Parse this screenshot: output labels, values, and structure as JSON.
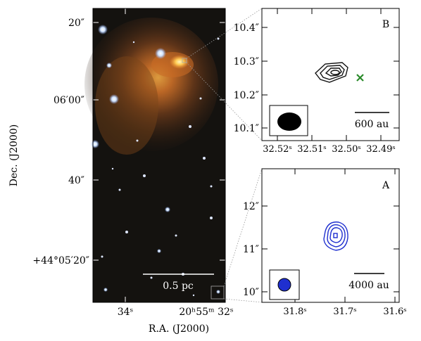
{
  "figure": {
    "main": {
      "ylabel": "Dec. (J2000)",
      "xlabel": "R.A. (J2000)",
      "yticks": [
        "20″",
        "06′00″",
        "40″",
        "+44°05′20″"
      ],
      "xticks": [
        "34ˢ",
        "20ʰ55ᵐ 32ˢ"
      ],
      "scalebar_label": "0.5 pc"
    },
    "panel_b": {
      "letter": "B",
      "yticks": [
        "10.4″",
        "10.3″",
        "10.2″",
        "10.1″"
      ],
      "xticks": [
        "32.52ˢ",
        "32.51ˢ",
        "32.50ˢ",
        "32.49ˢ"
      ],
      "scalebar_label": "600 au",
      "contour_color": "#111111",
      "marker_color": "#2a8a2a",
      "beam_color": "#000000"
    },
    "panel_a": {
      "letter": "A",
      "yticks": [
        "12″",
        "11″",
        "10″"
      ],
      "xticks": [
        "31.8ˢ",
        "31.7ˢ",
        "31.6ˢ"
      ],
      "scalebar_label": "4000 au",
      "contour_color": "#1f2fcf",
      "beam_color": "#1f2fcf"
    }
  }
}
